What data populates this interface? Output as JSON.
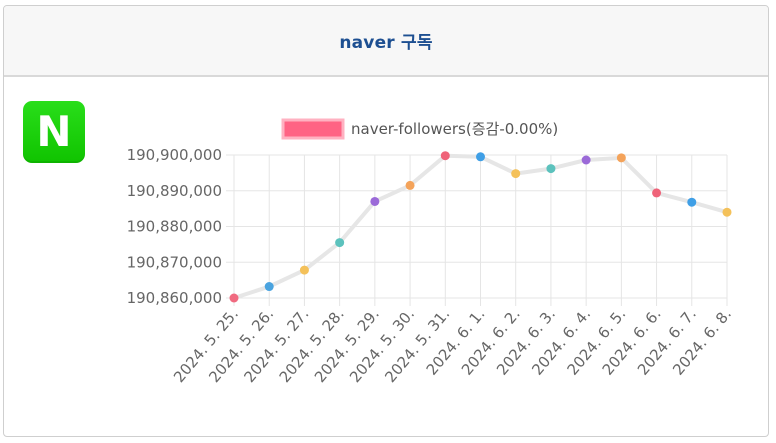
{
  "card": {
    "title": "naver 구독",
    "logo_letter": "N"
  },
  "colors": {
    "title": "#1d4f91",
    "logo": "#19cd0a",
    "legend_fill": "#ff6384",
    "line": "#e6e6e6",
    "grid": "#e5e5e5"
  },
  "chart_data": {
    "type": "line",
    "legend": {
      "label": "naver-followers(증감-0.00%)",
      "position": "top"
    },
    "x": [
      "2024. 5. 25.",
      "2024. 5. 26.",
      "2024. 5. 27.",
      "2024. 5. 28.",
      "2024. 5. 29.",
      "2024. 5. 30.",
      "2024. 5. 31.",
      "2024. 6. 1.",
      "2024. 6. 2.",
      "2024. 6. 3.",
      "2024. 6. 4.",
      "2024. 6. 5.",
      "2024. 6. 6.",
      "2024. 6. 7.",
      "2024. 6. 8."
    ],
    "series": [
      {
        "name": "naver-followers(증감-0.00%)",
        "values": [
          190860000,
          190863200,
          190867800,
          190875500,
          190887000,
          190891500,
          190899800,
          190899500,
          190894800,
          190896200,
          190898600,
          190899200,
          190889400,
          190886800,
          190884000
        ]
      }
    ],
    "point_colors": [
      "#f06a80",
      "#4aa3df",
      "#f4c15a",
      "#5cc2bd",
      "#9b6ad8",
      "#f4a35a",
      "#ef6379",
      "#3f9fe6",
      "#f4c15a",
      "#5cc2bd",
      "#9b6ad8",
      "#f4a35a",
      "#ef6379",
      "#3f9fe6",
      "#f4c15a"
    ],
    "yticks": [
      "190,860,000",
      "190,870,000",
      "190,880,000",
      "190,890,000",
      "190,900,000"
    ],
    "ytick_values": [
      190860000,
      190870000,
      190880000,
      190890000,
      190900000
    ],
    "ylim": [
      190860000,
      190900000
    ],
    "grid": true
  }
}
